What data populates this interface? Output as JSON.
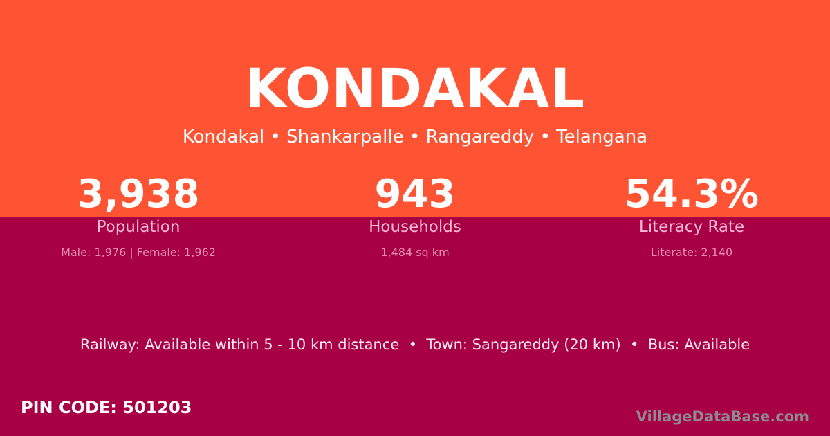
{
  "title": "KONDAKAL",
  "subtitle": "Kondakal • Shankarpalle • Rangareddy • Telangana",
  "stats": [
    {
      "value": "3,938",
      "label": "Population",
      "detail": "Male: 1,976 | Female: 1,962"
    },
    {
      "value": "943",
      "label": "Households",
      "detail": "1,484 sq km"
    },
    {
      "value": "54.3%",
      "label": "Literacy Rate",
      "detail": "Literate: 2,140"
    }
  ],
  "connectivity": "Railway: Available within 5 - 10 km distance  •  Town: Sangareddy (20 km)  •  Bus: Available",
  "pin_code": "PIN CODE: 501203",
  "watermark": "VillageDataBase.com",
  "colors": {
    "header": "#ff5433",
    "body": "#a80044"
  }
}
